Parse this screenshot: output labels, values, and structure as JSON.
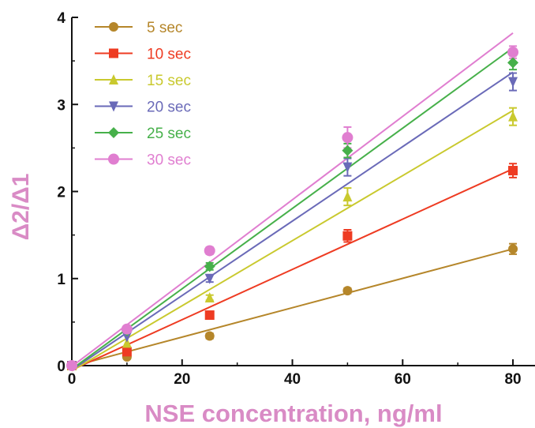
{
  "chart_data": {
    "type": "scatter",
    "title": "",
    "xlabel": "NSE concentration, ng/ml",
    "ylabel": "Δ2/Δ1",
    "axis_title_color": "#d98bc5",
    "xlim": [
      0,
      84
    ],
    "ylim": [
      0,
      4
    ],
    "x_ticks": [
      "0",
      "20",
      "40",
      "60",
      "80"
    ],
    "y_ticks": [
      "0",
      "1",
      "2",
      "3",
      "4"
    ],
    "legend_position": "top-left",
    "grid": false,
    "x": [
      0,
      10,
      25,
      50,
      80
    ],
    "series": [
      {
        "name": "5 sec",
        "color": "#b5862a",
        "marker": "circle",
        "values": [
          0,
          0.1,
          0.34,
          0.86,
          1.34
        ],
        "errors": [
          0,
          0,
          0.03,
          0.03,
          0.06
        ],
        "fit": {
          "x": [
            0,
            80
          ],
          "y": [
            -0.01,
            1.34
          ]
        }
      },
      {
        "name": "10 sec",
        "color": "#ee3b22",
        "marker": "square",
        "values": [
          0,
          0.16,
          0.58,
          1.49,
          2.24
        ],
        "errors": [
          0,
          0,
          0.03,
          0.07,
          0.08
        ],
        "fit": {
          "x": [
            0,
            80
          ],
          "y": [
            -0.05,
            2.26
          ]
        }
      },
      {
        "name": "15 sec",
        "color": "#c9c92e",
        "marker": "triangle-up",
        "values": [
          0,
          0.26,
          0.78,
          1.94,
          2.86
        ],
        "errors": [
          0,
          0,
          0.03,
          0.1,
          0.1
        ],
        "fit": {
          "x": [
            0,
            80
          ],
          "y": [
            -0.06,
            2.93
          ]
        }
      },
      {
        "name": "20 sec",
        "color": "#6a6ab8",
        "marker": "triangle-down",
        "values": [
          0,
          0.33,
          1.0,
          2.28,
          3.26
        ],
        "errors": [
          0,
          0,
          0.04,
          0.1,
          0.1
        ],
        "fit": {
          "x": [
            0,
            80
          ],
          "y": [
            -0.05,
            3.37
          ]
        }
      },
      {
        "name": "25 sec",
        "color": "#46b04a",
        "marker": "diamond",
        "values": [
          0,
          0.4,
          1.14,
          2.47,
          3.48
        ],
        "errors": [
          0,
          0,
          0.04,
          0.08,
          0.08
        ],
        "fit": {
          "x": [
            0,
            80
          ],
          "y": [
            -0.04,
            3.65
          ]
        }
      },
      {
        "name": "30 sec",
        "color": "#e07ed0",
        "marker": "circle",
        "values": [
          0,
          0.42,
          1.32,
          2.62,
          3.6
        ],
        "errors": [
          0,
          0,
          0.04,
          0.12,
          0.07
        ],
        "fit": {
          "x": [
            0,
            80
          ],
          "y": [
            -0.01,
            3.82
          ]
        }
      }
    ]
  }
}
